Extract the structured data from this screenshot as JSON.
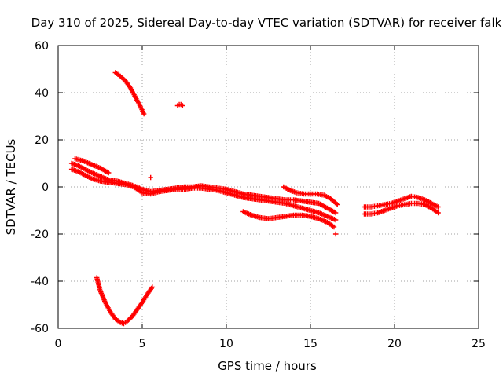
{
  "chart_data": {
    "type": "scatter",
    "title": "Day 310 of 2025, Sidereal Day-to-day VTEC variation (SDTVAR) for receiver falk",
    "xlabel": "GPS time / hours",
    "ylabel": "SDTVAR / TECUs",
    "xlim": [
      0,
      25
    ],
    "ylim": [
      -60,
      60
    ],
    "xticks": [
      0,
      5,
      10,
      15,
      20,
      25
    ],
    "yticks": [
      -60,
      -40,
      -20,
      0,
      20,
      40,
      60
    ],
    "grid": true,
    "marker": "+",
    "color": "#ff0000",
    "series": [
      {
        "name": "arc-high-descending",
        "x": [
          3.4,
          3.7,
          4.0,
          4.3,
          4.6,
          4.9,
          5.1
        ],
        "y": [
          48.5,
          47,
          45,
          42,
          38,
          34,
          31
        ]
      },
      {
        "name": "isolated-point",
        "x": [
          7.1,
          7.2,
          7.3,
          7.4
        ],
        "y": [
          34.5,
          35,
          35,
          34.5
        ]
      },
      {
        "name": "isolated-point-2",
        "x": [
          5.5
        ],
        "y": [
          4
        ]
      },
      {
        "name": "isolated-point-3",
        "x": [
          16.5
        ],
        "y": [
          -20
        ]
      },
      {
        "name": "arc-low-v",
        "x": [
          2.3,
          2.5,
          2.8,
          3.1,
          3.4,
          3.7,
          3.9,
          4.1,
          4.4,
          4.7,
          5.0,
          5.3,
          5.6
        ],
        "y": [
          -38.5,
          -44,
          -49,
          -53,
          -56,
          -57.5,
          -58,
          -57,
          -55,
          -52,
          -49,
          -45.5,
          -42.5
        ]
      },
      {
        "name": "band-a",
        "x": [
          0.8,
          1.2,
          1.6,
          2.0,
          2.5,
          3.0,
          3.5,
          4.0,
          4.5,
          5.0,
          5.5,
          6.0,
          6.5,
          7.0,
          7.5,
          8.0,
          8.5,
          9.0,
          9.5,
          10.0,
          10.5,
          11.0,
          11.5,
          12.0,
          12.5,
          13.0,
          13.5,
          14.0,
          14.5,
          15.0,
          15.5,
          16.0,
          16.5
        ],
        "y": [
          10,
          9,
          7.5,
          6,
          4.5,
          3,
          2.5,
          1.5,
          0.5,
          -1,
          -2,
          -1.5,
          -1,
          -0.5,
          0,
          0,
          0.5,
          0,
          -0.5,
          -1,
          -2,
          -3,
          -3.5,
          -4,
          -4.5,
          -5,
          -5.5,
          -5.5,
          -6,
          -6.5,
          -7,
          -9,
          -11
        ]
      },
      {
        "name": "band-b",
        "x": [
          0.8,
          1.2,
          1.6,
          2.0,
          2.5,
          3.0,
          3.5,
          4.0,
          4.5,
          5.0,
          5.5,
          6.0,
          6.5,
          7.0,
          7.5,
          8.0,
          8.5,
          9.0,
          9.5,
          10.0,
          10.5,
          11.0,
          11.5,
          12.0,
          12.5,
          13.0,
          13.5,
          14.0,
          14.5,
          15.0,
          15.5,
          16.0,
          16.5
        ],
        "y": [
          7.5,
          6.5,
          5,
          3.5,
          2.5,
          2,
          1.5,
          1,
          0,
          -2.5,
          -3,
          -2,
          -1.5,
          -1,
          -1,
          -0.5,
          -0.5,
          -1,
          -1.5,
          -2.5,
          -3.5,
          -4.5,
          -5,
          -5.5,
          -6,
          -6.5,
          -7,
          -8,
          -9,
          -10,
          -11,
          -12.5,
          -14
        ]
      },
      {
        "name": "band-c",
        "x": [
          1.0,
          1.5,
          2.0,
          2.5,
          3.0
        ],
        "y": [
          12,
          11,
          9.5,
          8,
          6
        ]
      },
      {
        "name": "arc-13-16",
        "x": [
          13.4,
          13.8,
          14.2,
          14.6,
          15.0,
          15.4,
          15.8,
          16.2,
          16.6
        ],
        "y": [
          0,
          -1.5,
          -2.5,
          -3,
          -3,
          -3,
          -3.5,
          -5,
          -7.5
        ]
      },
      {
        "name": "arc-11-16",
        "x": [
          11.0,
          11.5,
          12.0,
          12.5,
          13.0,
          13.5,
          14.0,
          14.5,
          15.0,
          15.5,
          16.0,
          16.4
        ],
        "y": [
          -10.5,
          -12,
          -13,
          -13.5,
          -13,
          -12.5,
          -12,
          -12,
          -12.5,
          -13.5,
          -15,
          -17
        ]
      },
      {
        "name": "arc-18-23-upper",
        "x": [
          18.2,
          18.6,
          19.0,
          19.4,
          19.8,
          20.2,
          20.6,
          21.0,
          21.4,
          21.8,
          22.2,
          22.6
        ],
        "y": [
          -8.5,
          -8.5,
          -8,
          -7.5,
          -7,
          -6,
          -5,
          -4,
          -4.5,
          -5.5,
          -7,
          -8.5
        ]
      },
      {
        "name": "arc-18-23-lower",
        "x": [
          18.2,
          18.6,
          19.0,
          19.4,
          19.8,
          20.2,
          20.6,
          21.0,
          21.4,
          21.8,
          22.2,
          22.6
        ],
        "y": [
          -11.5,
          -11.5,
          -11,
          -10,
          -9,
          -8,
          -7.5,
          -7,
          -7,
          -7.5,
          -9,
          -11
        ]
      }
    ]
  }
}
